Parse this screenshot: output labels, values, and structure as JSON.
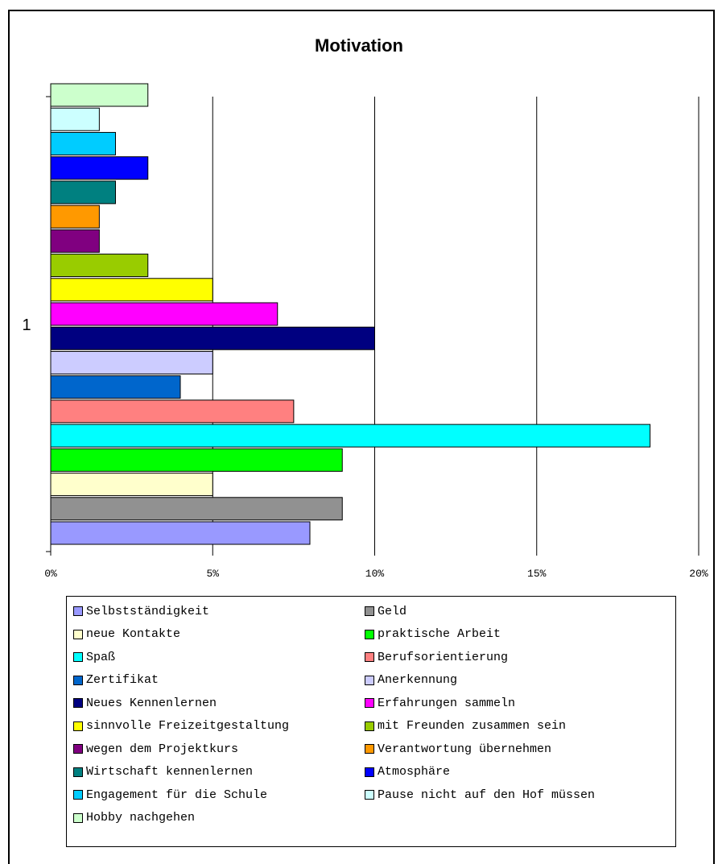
{
  "chart_data": {
    "type": "bar",
    "orientation": "horizontal",
    "title": "Motivation",
    "xlabel": "",
    "ylabel": "",
    "categories": [
      "1"
    ],
    "xlim": [
      0,
      20
    ],
    "x_ticks": [
      "0%",
      "5%",
      "10%",
      "15%",
      "20%"
    ],
    "x_tick_values": [
      0,
      5,
      10,
      15,
      20
    ],
    "grid": true,
    "legend_position": "bottom",
    "series": [
      {
        "name": "Selbstständigkeit",
        "value": 8,
        "color": "#9999ff"
      },
      {
        "name": "Geld",
        "value": 9,
        "color": "#919191"
      },
      {
        "name": "neue Kontakte",
        "value": 5,
        "color": "#ffffcc"
      },
      {
        "name": "praktische Arbeit",
        "value": 9,
        "color": "#00ff00"
      },
      {
        "name": "Spaß",
        "value": 18.5,
        "color": "#00ffff"
      },
      {
        "name": "Berufsorientierung",
        "value": 7.5,
        "color": "#ff8080"
      },
      {
        "name": "Zertifikat",
        "value": 4,
        "color": "#0066cc"
      },
      {
        "name": "Anerkennung",
        "value": 5,
        "color": "#ccccff"
      },
      {
        "name": "Neues Kennenlernen",
        "value": 10,
        "color": "#000080"
      },
      {
        "name": "Erfahrungen sammeln",
        "value": 7,
        "color": "#ff00ff"
      },
      {
        "name": "sinnvolle Freizeitgestaltung",
        "value": 5,
        "color": "#ffff00"
      },
      {
        "name": "mit Freunden zusammen sein",
        "value": 3,
        "color": "#99cc00"
      },
      {
        "name": "wegen dem Projektkurs",
        "value": 1.5,
        "color": "#800080"
      },
      {
        "name": "Verantwortung übernehmen",
        "value": 1.5,
        "color": "#ff9900"
      },
      {
        "name": "Wirtschaft kennenlernen",
        "value": 2,
        "color": "#008080"
      },
      {
        "name": "Atmosphäre",
        "value": 3,
        "color": "#0000ff"
      },
      {
        "name": "Engagement für die Schule",
        "value": 2,
        "color": "#00ccff"
      },
      {
        "name": "Pause nicht auf den Hof müssen",
        "value": 1.5,
        "color": "#ccffff"
      },
      {
        "name": "Hobby nachgehen",
        "value": 3,
        "color": "#ccffcc"
      }
    ]
  }
}
